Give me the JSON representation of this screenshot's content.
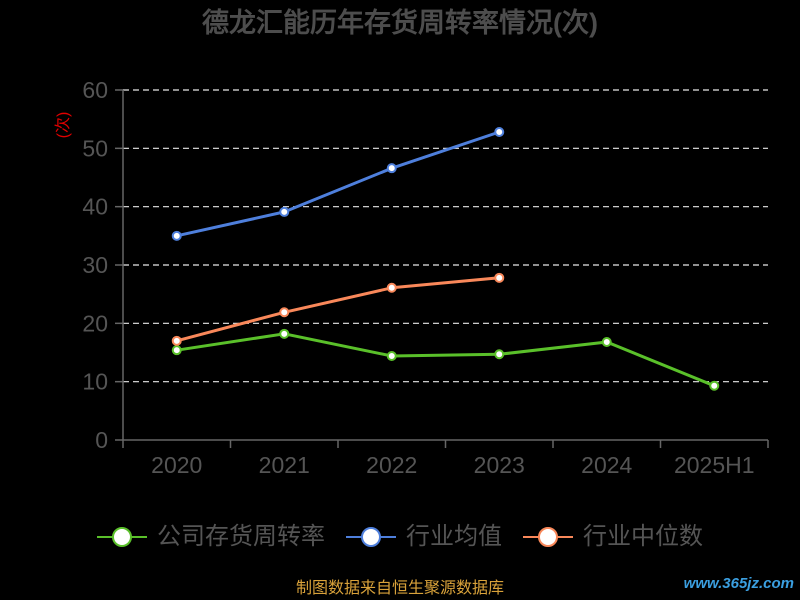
{
  "chart_data": {
    "type": "line",
    "title": "德龙汇能历年存货周转率情况(次)",
    "xlabel": "",
    "ylabel": "(次)",
    "categories": [
      "2020",
      "2021",
      "2022",
      "2023",
      "2024",
      "2025H1"
    ],
    "yticks": [
      0,
      10,
      20,
      30,
      40,
      50,
      60
    ],
    "ylim": [
      0,
      60
    ],
    "grid": true,
    "legend_position": "bottom",
    "series": [
      {
        "name": "公司存货周转率",
        "color": "#5ac02a",
        "values": [
          15.4,
          18.2,
          14.4,
          14.7,
          16.8,
          9.3
        ]
      },
      {
        "name": "行业均值",
        "color": "#4e7fdc",
        "values": [
          35.0,
          39.1,
          46.6,
          52.8,
          null,
          null
        ]
      },
      {
        "name": "行业中位数",
        "color": "#f9885a",
        "values": [
          17.0,
          21.9,
          26.1,
          27.8,
          null,
          null
        ]
      }
    ]
  },
  "footer": {
    "source": "制图数据来自恒生聚源数据库",
    "watermark": "www.365jz.com"
  },
  "colors": {
    "background": "#000000",
    "title": "#4d4d4d",
    "axis": "#666666",
    "grid": "#e8e8e8",
    "y_axis_name": "#e00000",
    "source": "#d9a23a",
    "watermark": "#3b9fe0"
  }
}
